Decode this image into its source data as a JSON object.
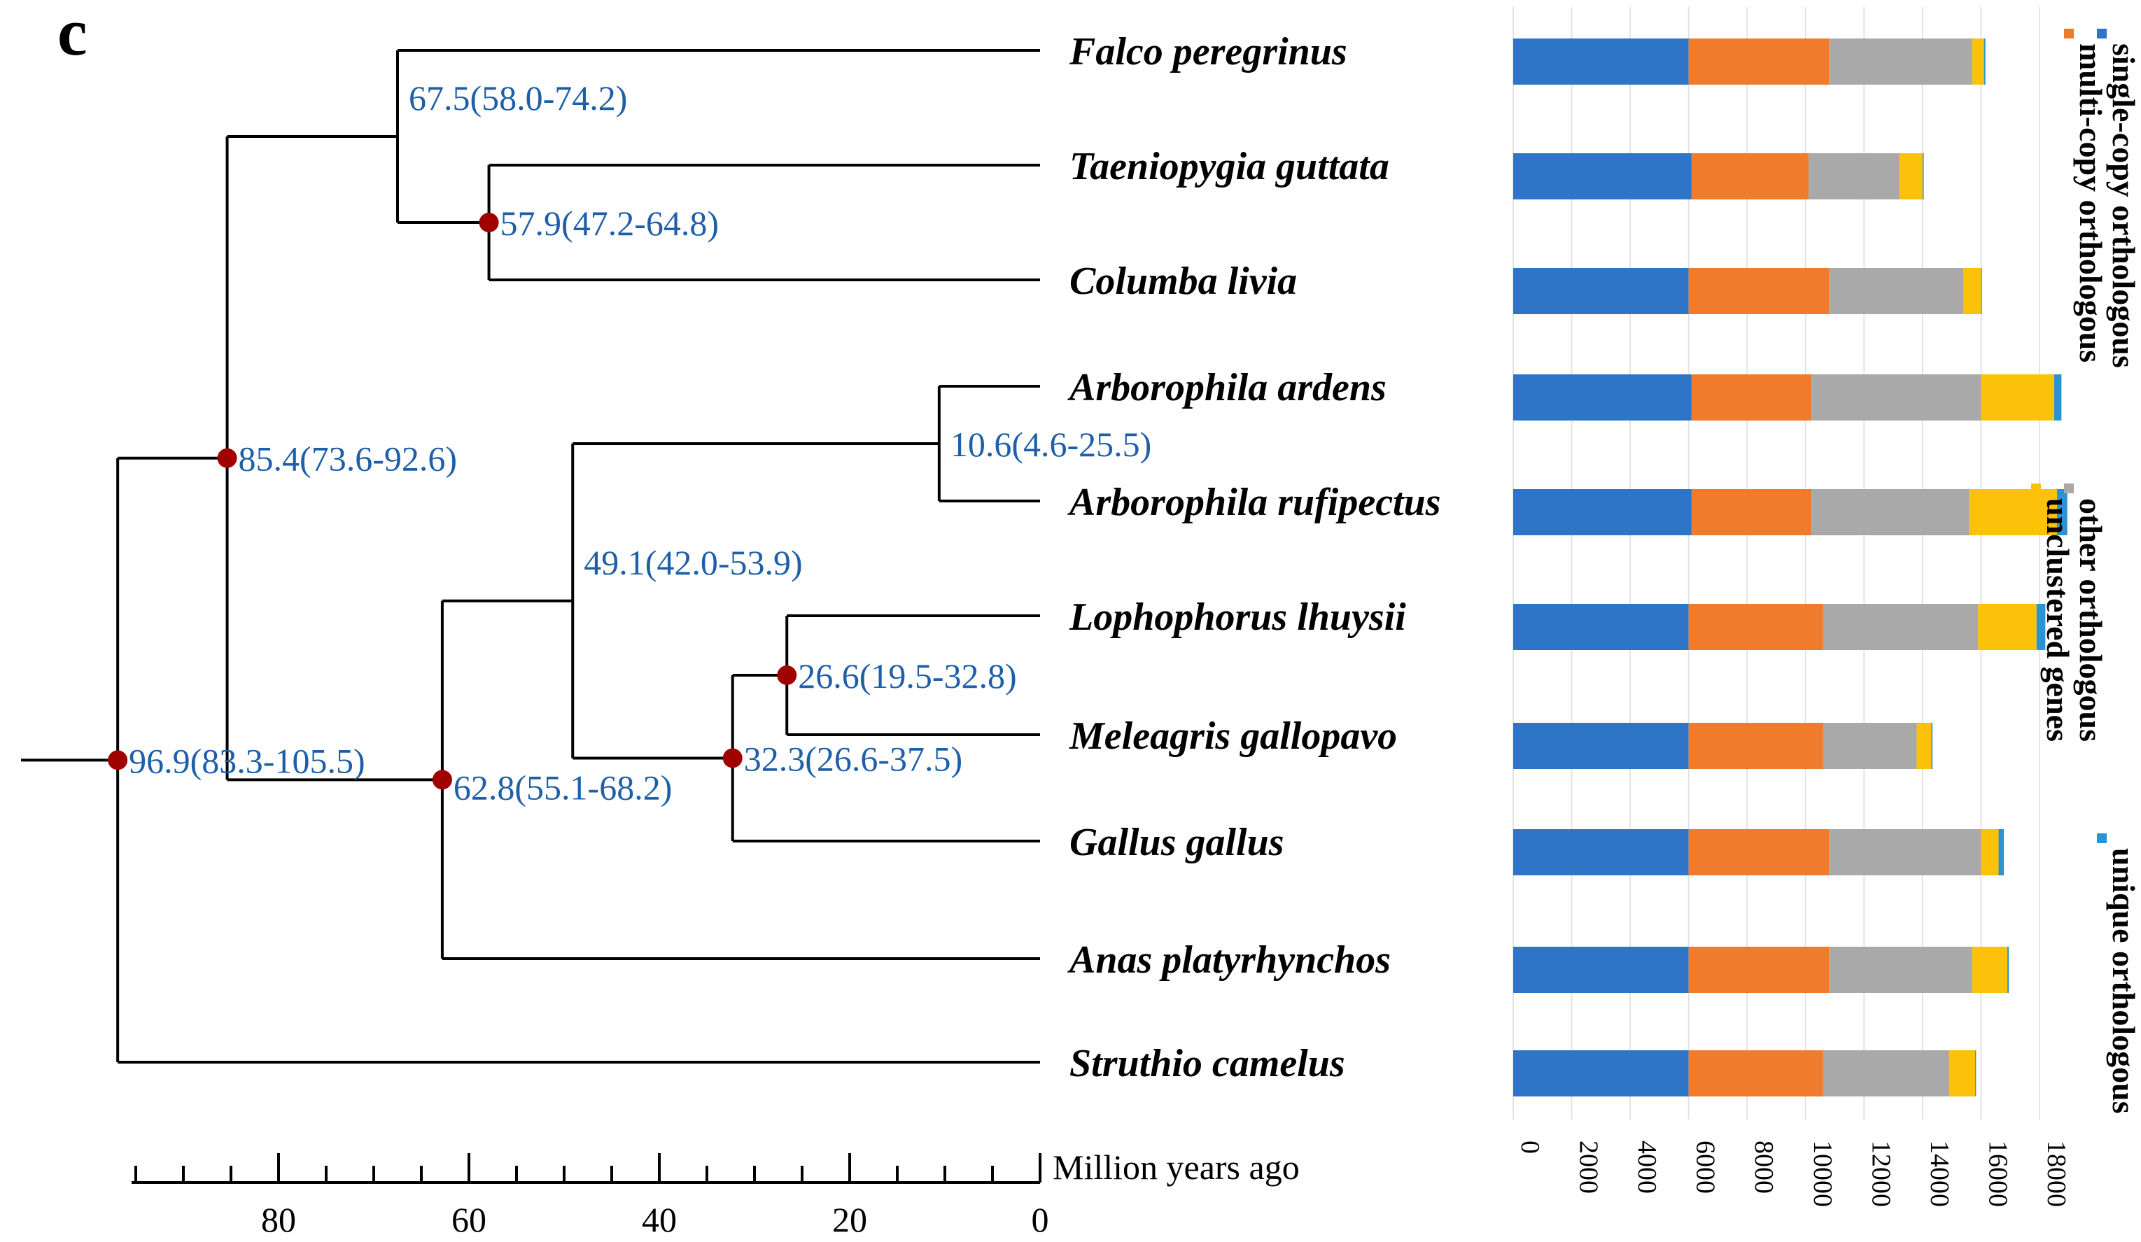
{
  "panel_label": "c",
  "axis": {
    "label": "Million years ago",
    "ticks": [
      {
        "value": 80,
        "label": "80"
      },
      {
        "value": 60,
        "label": "60"
      },
      {
        "value": 40,
        "label": "40"
      },
      {
        "value": 20,
        "label": "20"
      },
      {
        "value": 0,
        "label": "0"
      }
    ]
  },
  "species": [
    "Falco peregrinus",
    "Taeniopygia guttata",
    "Columba livia",
    "Arborophila ardens",
    "Arborophila rufipectus",
    "Lophophorus lhuysii",
    "Meleagris gallopavo",
    "Gallus gallus",
    "Anas platyrhynchos",
    "Struthio camelus"
  ],
  "nodes": [
    {
      "label": "96.9(83.3-105.5)",
      "age": 96.9,
      "marked": true
    },
    {
      "label": "85.4(73.6-92.6)",
      "age": 85.4,
      "marked": true
    },
    {
      "label": "67.5(58.0-74.2)",
      "age": 67.5,
      "marked": false
    },
    {
      "label": "57.9(47.2-64.8)",
      "age": 57.9,
      "marked": true
    },
    {
      "label": "62.8(55.1-68.2)",
      "age": 62.8,
      "marked": true
    },
    {
      "label": "49.1(42.0-53.9)",
      "age": 49.1,
      "marked": false
    },
    {
      "label": "10.6(4.6-25.5)",
      "age": 10.6,
      "marked": false
    },
    {
      "label": "32.3(26.6-37.5)",
      "age": 32.3,
      "marked": true
    },
    {
      "label": "26.6(19.5-32.8)",
      "age": 26.6,
      "marked": true
    }
  ],
  "colors": {
    "node_label": "#1e5fa8",
    "node_marker": "#a00000",
    "series": [
      "#2e75c8",
      "#f07b2c",
      "#a9a9a9",
      "#fcc20a",
      "#2a93d5"
    ]
  },
  "chart_data": {
    "type": "bar",
    "orientation": "horizontal",
    "stacked": true,
    "categories": [
      "Falco peregrinus",
      "Taeniopygia guttata",
      "Columba livia",
      "Arborophila ardens",
      "Arborophila rufipectus",
      "Lophophorus lhuysii",
      "Meleagris gallopavo",
      "Gallus gallus",
      "Anas platyrhynchos",
      "Struthio camelus"
    ],
    "series": [
      {
        "name": "single-copy orthologous",
        "values": [
          6000,
          6100,
          6000,
          6100,
          6100,
          6000,
          6000,
          6000,
          6000,
          6000
        ]
      },
      {
        "name": "multi-copy orthologous",
        "values": [
          4800,
          4000,
          4800,
          4100,
          4100,
          4600,
          4600,
          4800,
          4800,
          4600
        ]
      },
      {
        "name": "other orthologous",
        "values": [
          4900,
          3100,
          4600,
          5800,
          5400,
          5300,
          3200,
          5200,
          4900,
          4300
        ]
      },
      {
        "name": "unclustered genes",
        "values": [
          400,
          800,
          600,
          2500,
          3000,
          2000,
          500,
          600,
          1200,
          900
        ]
      },
      {
        "name": "unique orthologous",
        "values": [
          50,
          40,
          30,
          250,
          350,
          300,
          40,
          180,
          50,
          30
        ]
      }
    ],
    "xlim": [
      0,
      18000
    ],
    "xticks": [
      0,
      2000,
      4000,
      6000,
      8000,
      10000,
      12000,
      14000,
      16000,
      18000
    ],
    "xtick_labels": [
      "0",
      "2000",
      "4000",
      "6000",
      "8000",
      "10000",
      "12000",
      "14000",
      "16000",
      "18000"
    ],
    "grid": true,
    "legend": "right"
  }
}
